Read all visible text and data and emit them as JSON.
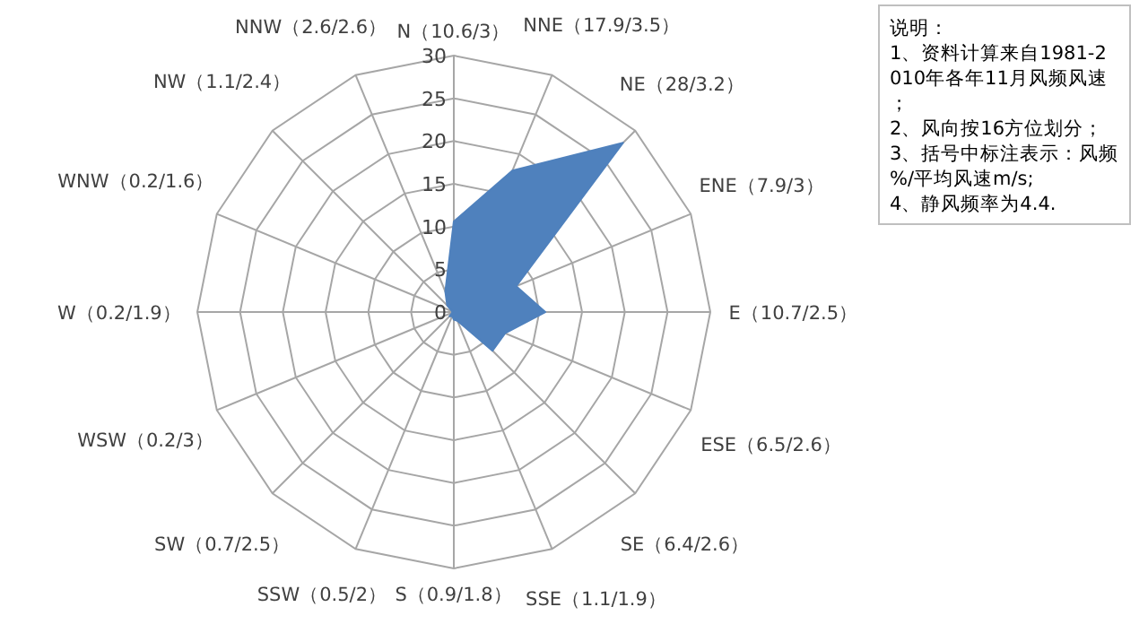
{
  "chart_data": {
    "type": "radar",
    "categories": [
      "N（10.6/3）",
      "NNE（17.9/3.5）",
      "NE（28/3.2）",
      "ENE（7.9/3）",
      "E（10.7/2.5）",
      "ESE（6.5/2.6）",
      "SE（6.4/2.6）",
      "SSE（1.1/1.9）",
      "S（0.9/1.8）",
      "SSW（0.5/2）",
      "SW（0.7/2.5）",
      "WSW（0.2/3）",
      "W（0.2/1.9）",
      "WNW（0.2/1.6）",
      "NW（1.1/2.4）",
      "NNW（2.6/2.6）"
    ],
    "series": [
      {
        "color": "#4f81bd",
        "values": [
          10.6,
          17.9,
          28,
          7.9,
          10.7,
          6.5,
          6.4,
          1.1,
          0.9,
          0.5,
          0.7,
          0.2,
          0.2,
          0.2,
          1.1,
          2.6
        ]
      }
    ],
    "ylim": [
      0,
      30
    ],
    "yticks": [
      0,
      5,
      10,
      15,
      20,
      25,
      30
    ],
    "grid": true,
    "annotations": [
      "说明：",
      "1、资料计算来自1981-2010年各年11月风频风速；",
      "2、风向按16方位划分；",
      "3、括号中标注表示：风频%/平均风速m/s;",
      "4、静风频率为4.4."
    ]
  }
}
